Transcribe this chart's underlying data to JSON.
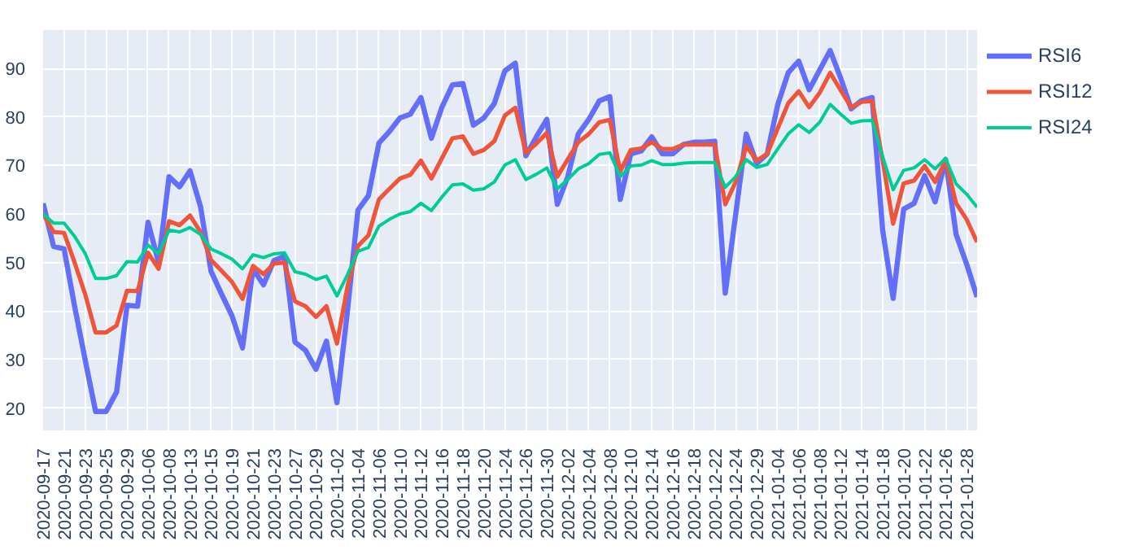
{
  "chart_data": {
    "type": "line",
    "categories": [
      "2020-09-17",
      null,
      "2020-09-21",
      null,
      "2020-09-23",
      null,
      "2020-09-25",
      null,
      "2020-09-29",
      null,
      "2020-10-06",
      null,
      "2020-10-08",
      null,
      "2020-10-13",
      null,
      "2020-10-15",
      null,
      "2020-10-19",
      null,
      "2020-10-21",
      null,
      "2020-10-23",
      null,
      "2020-10-27",
      null,
      "2020-10-29",
      null,
      "2020-11-02",
      null,
      "2020-11-04",
      null,
      "2020-11-06",
      null,
      "2020-11-10",
      null,
      "2020-11-12",
      null,
      "2020-11-16",
      null,
      "2020-11-18",
      null,
      "2020-11-20",
      null,
      "2020-11-24",
      null,
      "2020-11-26",
      null,
      "2020-11-30",
      null,
      "2020-12-02",
      null,
      "2020-12-04",
      null,
      "2020-12-08",
      null,
      "2020-12-10",
      null,
      "2020-12-14",
      null,
      "2020-12-16",
      null,
      "2020-12-18",
      null,
      "2020-12-22",
      null,
      "2020-12-24",
      null,
      "2020-12-29",
      null,
      "2021-01-04",
      null,
      "2021-01-06",
      null,
      "2021-01-08",
      null,
      "2021-01-12",
      null,
      "2021-01-14",
      null,
      "2021-01-18",
      null,
      "2021-01-20",
      null,
      "2021-01-22",
      null,
      "2021-01-26",
      null,
      "2021-01-28",
      null
    ],
    "series": [
      {
        "name": "RSI6",
        "color": "#636efa",
        "values": [
          62.2,
          53.3,
          52.8,
          41,
          30,
          19.3,
          19.3,
          23.3,
          41.2,
          41,
          58.3,
          50,
          67.7,
          65.6,
          68.9,
          61.5,
          48.2,
          43.5,
          39,
          32.4,
          48.7,
          45.4,
          50.4,
          51.3,
          33.6,
          31.9,
          28,
          33.8,
          21.1,
          40,
          60.8,
          63.8,
          74.6,
          77,
          79.8,
          80.6,
          84,
          75.6,
          82,
          86.6,
          86.9,
          78.3,
          79.8,
          82.8,
          89.5,
          91.1,
          72,
          75.9,
          79.5,
          62,
          67.7,
          76.5,
          79.5,
          83.3,
          84.2,
          63,
          72.4,
          73,
          75.9,
          72.4,
          72.4,
          74.3,
          74.8,
          74.8,
          75,
          43.7,
          60,
          76.5,
          70.4,
          72.4,
          82.5,
          89.1,
          91.5,
          85.6,
          89.7,
          93.7,
          88,
          81.7,
          83.4,
          84,
          56.7,
          42.6,
          61,
          62.2,
          67.9,
          62.5,
          71.2,
          55.8,
          49.7,
          42.9
        ]
      },
      {
        "name": "RSI12",
        "color": "#ef553b",
        "values": [
          60,
          56.3,
          56.1,
          50,
          43.5,
          35.6,
          35.6,
          37,
          44.2,
          44.1,
          52,
          48.7,
          58.5,
          57.7,
          59.7,
          56.3,
          50.5,
          48.3,
          46,
          42.5,
          49.3,
          47.6,
          49.8,
          50,
          42,
          41,
          38.8,
          41,
          33.3,
          45,
          53.4,
          55.6,
          63,
          65.2,
          67.3,
          68.1,
          71,
          67.3,
          71.5,
          75.6,
          76,
          72.4,
          73.2,
          75,
          80.3,
          81.9,
          72.6,
          74.5,
          76.7,
          67.7,
          71.3,
          74.8,
          76.5,
          78.9,
          79.4,
          68.8,
          73.2,
          73.5,
          74.8,
          73.4,
          73.4,
          74.3,
          74.3,
          74.3,
          74.3,
          62,
          66.6,
          74,
          71,
          72.4,
          77.6,
          82.8,
          85.3,
          82,
          85,
          89.1,
          85.5,
          82,
          83.1,
          83.3,
          71,
          58,
          66.3,
          66.9,
          69.9,
          66.6,
          71,
          62.2,
          58.9,
          54.2
        ]
      },
      {
        "name": "RSI24",
        "color": "#00cc96",
        "values": [
          60,
          58.1,
          58.1,
          55.4,
          51.9,
          46.7,
          46.7,
          47.3,
          50.2,
          50.1,
          53.6,
          51.8,
          56.7,
          56.3,
          57.2,
          55.8,
          52.8,
          51.8,
          50.7,
          48.7,
          51.6,
          51,
          51.8,
          52,
          48.1,
          47.6,
          46.5,
          47.2,
          43.1,
          47.5,
          52.3,
          53.1,
          57.5,
          58.9,
          60,
          60.5,
          62.2,
          60.7,
          63.5,
          66,
          66.2,
          64.9,
          65.2,
          66.6,
          70.1,
          71.2,
          67.1,
          68.2,
          69.5,
          65.2,
          67.1,
          69.3,
          70.4,
          72.3,
          72.6,
          67.7,
          69.9,
          70.1,
          71,
          70.2,
          70.2,
          70.5,
          70.6,
          70.6,
          70.6,
          65.5,
          67.7,
          71.2,
          69.6,
          70.2,
          73.4,
          76.5,
          78.4,
          76.8,
          78.9,
          82.6,
          80.6,
          78.7,
          79.2,
          79.3,
          71.8,
          65,
          69,
          69.5,
          71.2,
          69.3,
          71.5,
          66.2,
          64.1,
          61.4
        ]
      }
    ],
    "ylim": [
      15.4,
      97.9
    ],
    "yticks": [
      20,
      30,
      40,
      50,
      60,
      70,
      80,
      90
    ],
    "grid": true,
    "legend": "top right"
  }
}
